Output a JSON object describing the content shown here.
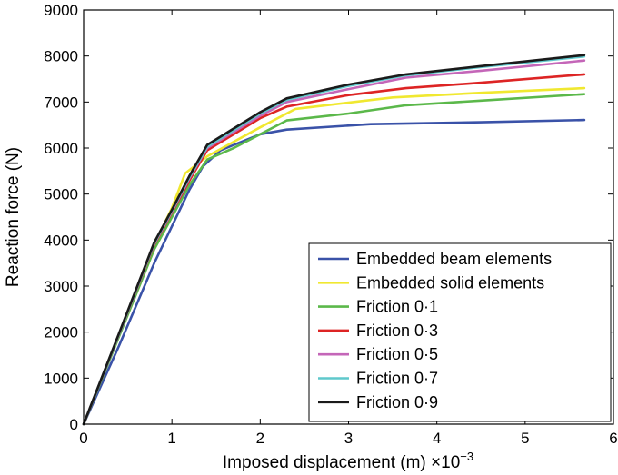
{
  "chart_data": {
    "type": "line",
    "xlabel": "Imposed displacement (m)",
    "x_multiplier": "×10",
    "x_multiplier_exp": "−3",
    "ylabel": "Reaction force (N)",
    "xlim": [
      0,
      6
    ],
    "ylim": [
      0,
      9000
    ],
    "x_ticks": [
      0,
      1,
      2,
      3,
      4,
      5,
      6
    ],
    "y_ticks": [
      0,
      1000,
      2000,
      3000,
      4000,
      5000,
      6000,
      7000,
      8000,
      9000
    ],
    "grid": false,
    "legend_position": "bottom-right",
    "series": [
      {
        "name": "Embedded beam elements",
        "color": "#3a52a8",
        "x": [
          0,
          0.4,
          0.8,
          1.0,
          1.2,
          1.35,
          1.55,
          2.0,
          2.3,
          3.25,
          4.5,
          5.67
        ],
        "y": [
          0,
          1700,
          3500,
          4300,
          5100,
          5600,
          5950,
          6300,
          6400,
          6520,
          6560,
          6610
        ]
      },
      {
        "name": "Embedded solid elements",
        "color": "#f0e830",
        "x": [
          0,
          0.4,
          0.8,
          1.0,
          1.15,
          1.4,
          2.0,
          2.4,
          3.5,
          4.5,
          5.67
        ],
        "y": [
          0,
          1950,
          3900,
          4700,
          5450,
          5820,
          6450,
          6850,
          7100,
          7200,
          7300
        ]
      },
      {
        "name": "Friction 0·1",
        "color": "#5bb84a",
        "x": [
          0,
          0.4,
          0.8,
          1.0,
          1.2,
          1.4,
          1.7,
          2.0,
          2.3,
          3.0,
          3.65,
          4.5,
          5.67
        ],
        "y": [
          0,
          1900,
          3800,
          4500,
          5200,
          5750,
          6000,
          6300,
          6600,
          6750,
          6930,
          7030,
          7170
        ]
      },
      {
        "name": "Friction 0·3",
        "color": "#dd2424",
        "x": [
          0,
          0.4,
          0.8,
          1.0,
          1.2,
          1.4,
          2.0,
          2.3,
          3.0,
          3.65,
          4.5,
          5.67
        ],
        "y": [
          0,
          1950,
          3900,
          4600,
          5300,
          5950,
          6650,
          6900,
          7150,
          7300,
          7420,
          7600
        ]
      },
      {
        "name": "Friction 0·5",
        "color": "#c466b8",
        "x": [
          0,
          0.4,
          0.8,
          1.0,
          1.2,
          1.4,
          2.0,
          2.3,
          3.0,
          3.65,
          4.5,
          5.67
        ],
        "y": [
          0,
          1950,
          3920,
          4620,
          5350,
          6000,
          6700,
          7000,
          7280,
          7530,
          7680,
          7900
        ]
      },
      {
        "name": "Friction 0·7",
        "color": "#5fc8cc",
        "x": [
          0,
          0.4,
          0.8,
          1.0,
          1.2,
          1.4,
          2.0,
          2.3,
          3.0,
          3.65,
          4.5,
          5.67
        ],
        "y": [
          0,
          1960,
          3930,
          4640,
          5370,
          6030,
          6750,
          7050,
          7350,
          7580,
          7760,
          7990
        ]
      },
      {
        "name": "Friction 0·9",
        "color": "#1a1a1a",
        "x": [
          0,
          0.4,
          0.8,
          1.0,
          1.2,
          1.4,
          2.0,
          2.3,
          3.0,
          3.65,
          4.5,
          5.67
        ],
        "y": [
          0,
          1970,
          3950,
          4660,
          5400,
          6070,
          6780,
          7080,
          7380,
          7600,
          7780,
          8020
        ]
      }
    ]
  }
}
